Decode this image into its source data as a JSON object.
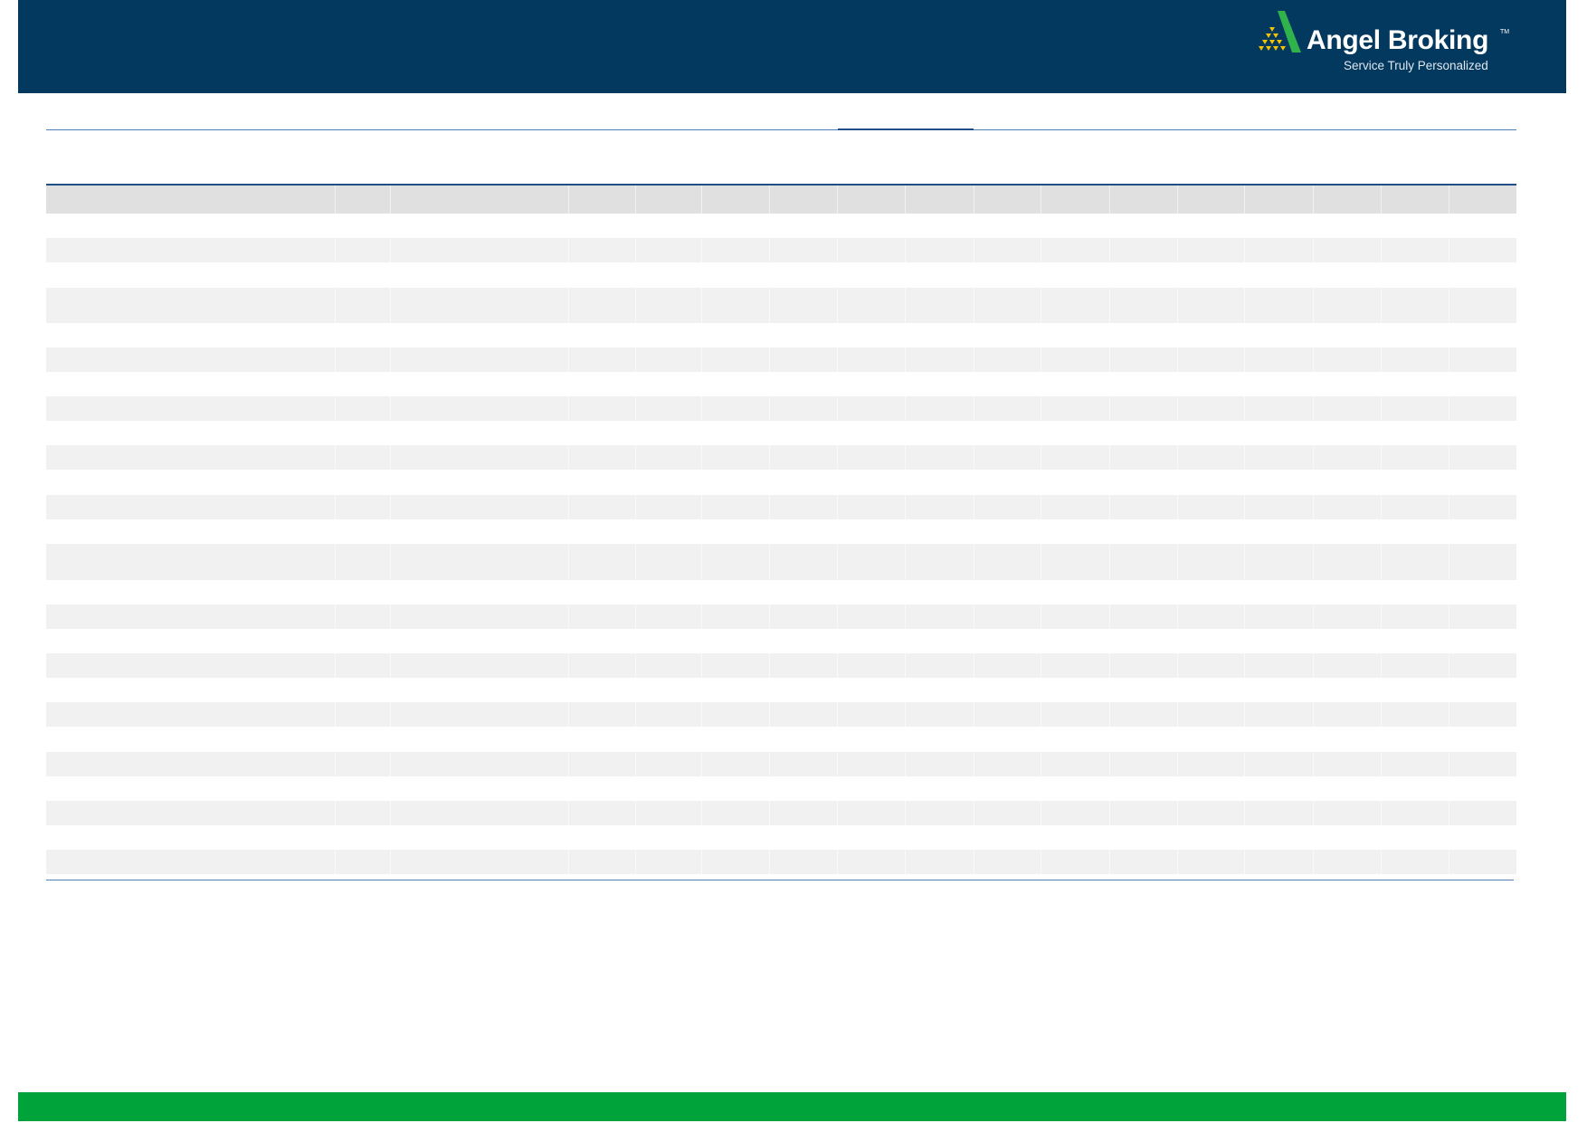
{
  "header": {
    "background_color": "#03385f",
    "logo": {
      "name": "Angel Broking",
      "trademark": "TM",
      "tagline": "Service Truly Personalized",
      "mark_colors": [
        "#2fb34a",
        "#f5c400"
      ]
    }
  },
  "table": {
    "header_color": "#e0e0e0",
    "stripe_color": "#f1f1f1",
    "rule_color": "#1f4f86",
    "columns": 17,
    "rows": []
  },
  "footer": {
    "background_color": "#00a33a"
  }
}
